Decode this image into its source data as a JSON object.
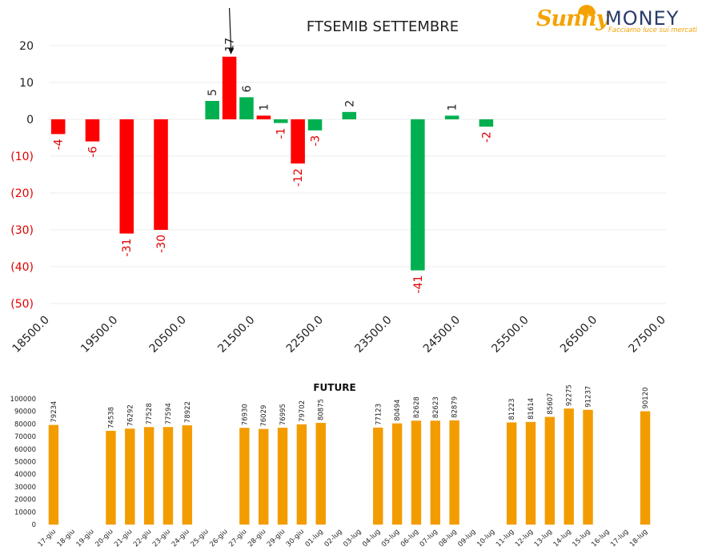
{
  "logo": {
    "brand_a": "Sunny",
    "brand_b": "MONEY",
    "tagline": "Facciamo luce sui mercati"
  },
  "chart_data": [
    {
      "type": "bar",
      "title": "FTSEMIB SETTEMBRE",
      "x_ticks": [
        "18500.0",
        "19500.0",
        "20500.0",
        "21500.0",
        "22500.0",
        "23500.0",
        "24500.0",
        "25500.0",
        "26500.0",
        "27500.0"
      ],
      "y_ticks": [
        "20",
        "10",
        "0",
        "(10)",
        "(20)",
        "(30)",
        "(40)",
        "(50)"
      ],
      "ylim": [
        -50,
        20
      ],
      "xlim": [
        18500,
        27500
      ],
      "bar_width_units": 250,
      "grid": true,
      "bars": [
        {
          "x": 18625,
          "value": -4,
          "label": "-4",
          "color": "#ff0000"
        },
        {
          "x": 19125,
          "value": -6,
          "label": "-6",
          "color": "#ff0000"
        },
        {
          "x": 19625,
          "value": -31,
          "label": "-31",
          "color": "#ff0000"
        },
        {
          "x": 20125,
          "value": -30,
          "label": "-30",
          "color": "#ff0000"
        },
        {
          "x": 20875,
          "value": 5,
          "label": "5",
          "color": "#00b050"
        },
        {
          "x": 21125,
          "value": 17,
          "label": "17",
          "color": "#ff0000"
        },
        {
          "x": 21375,
          "value": 6,
          "label": "6",
          "color": "#00b050"
        },
        {
          "x": 21625,
          "value": 1,
          "label": "1",
          "color": "#ff0000"
        },
        {
          "x": 21875,
          "value": -1,
          "label": "-1",
          "color": "#00b050"
        },
        {
          "x": 22125,
          "value": -12,
          "label": "-12",
          "color": "#ff0000"
        },
        {
          "x": 22375,
          "value": -3,
          "label": "-3",
          "color": "#00b050"
        },
        {
          "x": 22875,
          "value": 2,
          "label": "2",
          "color": "#00b050"
        },
        {
          "x": 23875,
          "value": -41,
          "label": "-41",
          "color": "#00b050"
        },
        {
          "x": 24375,
          "value": 1,
          "label": "1",
          "color": "#00b050"
        },
        {
          "x": 24875,
          "value": -2,
          "label": "-2",
          "color": "#00b050"
        }
      ],
      "arrow_at_x": 21125
    },
    {
      "type": "bar",
      "title": "FUTURE",
      "categories": [
        "17-giu",
        "18-giu",
        "19-giu",
        "20-giu",
        "21-giu",
        "22-giu",
        "23-giu",
        "24-giu",
        "25-giu",
        "26-giu",
        "27-giu",
        "28-giu",
        "29-giu",
        "30-giu",
        "01-lug",
        "02-lug",
        "03-lug",
        "04-lug",
        "05-lug",
        "06-lug",
        "07-lug",
        "08-lug",
        "09-lug",
        "10-lug",
        "11-lug",
        "12-lug",
        "13-lug",
        "14-lug",
        "15-lug",
        "16-lug",
        "17-lug",
        "18-lug"
      ],
      "values": [
        79234,
        null,
        null,
        74538,
        76292,
        77528,
        77594,
        78922,
        null,
        null,
        76930,
        76029,
        76995,
        79702,
        80875,
        null,
        null,
        77123,
        80494,
        82628,
        82623,
        82879,
        null,
        null,
        81223,
        81614,
        85607,
        92275,
        91237,
        null,
        null,
        90120
      ],
      "y_ticks": [
        "100000",
        "90000",
        "80000",
        "70000",
        "60000",
        "50000",
        "40000",
        "30000",
        "20000",
        "10000",
        "0"
      ],
      "ylim": [
        0,
        100000
      ],
      "color": "#f39c00"
    }
  ]
}
